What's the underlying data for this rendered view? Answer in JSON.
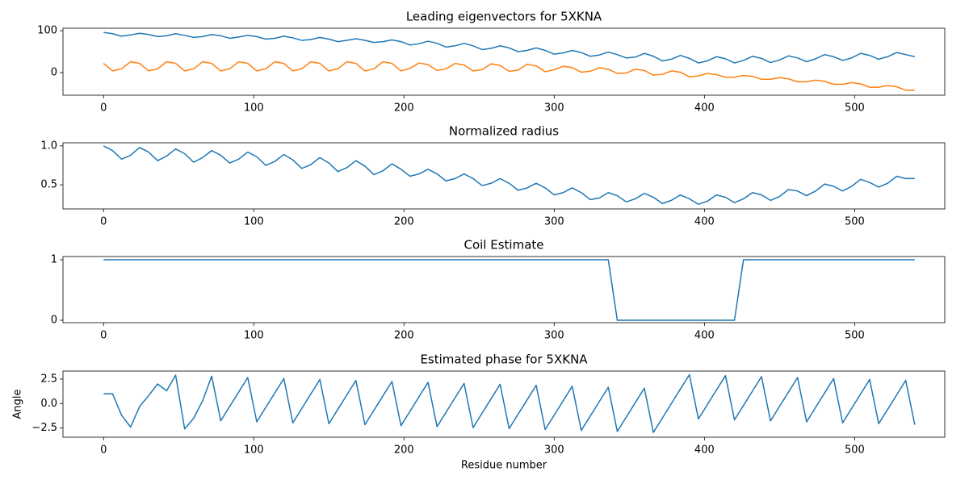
{
  "chart_data": [
    {
      "type": "line",
      "title": "Leading eigenvectors for 5XKNA",
      "x": [
        0,
        6,
        12,
        18,
        24,
        30,
        36,
        42,
        48,
        54,
        60,
        66,
        72,
        78,
        84,
        90,
        96,
        102,
        108,
        114,
        120,
        126,
        132,
        138,
        144,
        150,
        156,
        162,
        168,
        174,
        180,
        186,
        192,
        198,
        204,
        210,
        216,
        222,
        228,
        234,
        240,
        246,
        252,
        258,
        264,
        270,
        276,
        282,
        288,
        294,
        300,
        306,
        312,
        318,
        324,
        330,
        336,
        342,
        348,
        354,
        360,
        366,
        372,
        378,
        384,
        390,
        396,
        402,
        408,
        414,
        420,
        426,
        432,
        438,
        444,
        450,
        456,
        462,
        468,
        474,
        480,
        486,
        492,
        498,
        504,
        510,
        516,
        522,
        528,
        534,
        540
      ],
      "series": [
        {
          "color": "#1f77b4",
          "values": [
            96,
            93,
            87,
            90,
            94,
            91,
            86,
            88,
            93,
            89,
            84,
            86,
            91,
            88,
            82,
            85,
            89,
            86,
            80,
            82,
            87,
            83,
            77,
            79,
            84,
            80,
            74,
            77,
            81,
            77,
            72,
            74,
            78,
            74,
            66,
            69,
            75,
            70,
            61,
            64,
            70,
            64,
            55,
            58,
            64,
            59,
            50,
            53,
            59,
            53,
            44,
            47,
            53,
            48,
            39,
            42,
            49,
            43,
            35,
            37,
            46,
            39,
            28,
            32,
            41,
            34,
            23,
            28,
            38,
            33,
            23,
            29,
            39,
            34,
            24,
            30,
            40,
            35,
            26,
            33,
            43,
            38,
            29,
            35,
            46,
            41,
            32,
            38,
            48,
            43,
            38
          ]
        },
        {
          "color": "#ff7f0e",
          "values": [
            22,
            4,
            9,
            26,
            22,
            4,
            9,
            26,
            22,
            4,
            9,
            26,
            22,
            4,
            9,
            26,
            22,
            4,
            9,
            26,
            22,
            4,
            9,
            26,
            22,
            4,
            9,
            26,
            22,
            4,
            9,
            26,
            22,
            4,
            10,
            23,
            19,
            5,
            9,
            22,
            18,
            4,
            7,
            21,
            17,
            3,
            6,
            20,
            16,
            2,
            7,
            15,
            12,
            1,
            3,
            12,
            8,
            -2,
            -1,
            8,
            5,
            -6,
            -4,
            4,
            1,
            -10,
            -8,
            -2,
            -5,
            -11,
            -11,
            -7,
            -9,
            -16,
            -16,
            -12,
            -15,
            -22,
            -22,
            -18,
            -21,
            -28,
            -28,
            -24,
            -27,
            -35,
            -35,
            -31,
            -34,
            -42,
            -42
          ]
        }
      ],
      "xlim": [
        -27,
        560
      ],
      "xticks": [
        0,
        100,
        200,
        300,
        400,
        500
      ],
      "ylim": [
        -54,
        106
      ],
      "yticks": [
        0,
        100
      ]
    },
    {
      "type": "line",
      "title": "Normalized radius",
      "x": [
        0,
        6,
        12,
        18,
        24,
        30,
        36,
        42,
        48,
        54,
        60,
        66,
        72,
        78,
        84,
        90,
        96,
        102,
        108,
        114,
        120,
        126,
        132,
        138,
        144,
        150,
        156,
        162,
        168,
        174,
        180,
        186,
        192,
        198,
        204,
        210,
        216,
        222,
        228,
        234,
        240,
        246,
        252,
        258,
        264,
        270,
        276,
        282,
        288,
        294,
        300,
        306,
        312,
        318,
        324,
        330,
        336,
        342,
        348,
        354,
        360,
        366,
        372,
        378,
        384,
        390,
        396,
        402,
        408,
        414,
        420,
        426,
        432,
        438,
        444,
        450,
        456,
        462,
        468,
        474,
        480,
        486,
        492,
        498,
        504,
        510,
        516,
        522,
        528,
        534,
        540
      ],
      "series": [
        {
          "color": "#1f77b4",
          "values": [
            1.0,
            0.94,
            0.83,
            0.88,
            0.98,
            0.92,
            0.81,
            0.87,
            0.96,
            0.9,
            0.79,
            0.85,
            0.94,
            0.88,
            0.78,
            0.83,
            0.92,
            0.86,
            0.75,
            0.8,
            0.89,
            0.82,
            0.71,
            0.76,
            0.85,
            0.78,
            0.67,
            0.72,
            0.81,
            0.74,
            0.63,
            0.68,
            0.77,
            0.7,
            0.61,
            0.64,
            0.7,
            0.64,
            0.55,
            0.58,
            0.64,
            0.58,
            0.49,
            0.52,
            0.58,
            0.52,
            0.43,
            0.46,
            0.52,
            0.46,
            0.37,
            0.4,
            0.46,
            0.4,
            0.31,
            0.33,
            0.4,
            0.36,
            0.28,
            0.32,
            0.39,
            0.34,
            0.26,
            0.3,
            0.37,
            0.32,
            0.25,
            0.29,
            0.37,
            0.34,
            0.27,
            0.32,
            0.4,
            0.37,
            0.3,
            0.35,
            0.44,
            0.42,
            0.36,
            0.42,
            0.51,
            0.48,
            0.42,
            0.48,
            0.57,
            0.53,
            0.47,
            0.52,
            0.61,
            0.58,
            0.58
          ]
        }
      ],
      "xlim": [
        -27,
        560
      ],
      "xticks": [
        0,
        100,
        200,
        300,
        400,
        500
      ],
      "ylim": [
        0.19,
        1.04
      ],
      "yticks": [
        0.5,
        {
          "value": 1,
          "label": "1.0"
        }
      ]
    },
    {
      "type": "line",
      "title": "Coil Estimate",
      "x": [
        0,
        6,
        12,
        18,
        24,
        30,
        36,
        42,
        48,
        54,
        60,
        66,
        72,
        78,
        84,
        90,
        96,
        102,
        108,
        114,
        120,
        126,
        132,
        138,
        144,
        150,
        156,
        162,
        168,
        174,
        180,
        186,
        192,
        198,
        204,
        210,
        216,
        222,
        228,
        234,
        240,
        246,
        252,
        258,
        264,
        270,
        276,
        282,
        288,
        294,
        300,
        306,
        312,
        318,
        324,
        330,
        336,
        342,
        348,
        354,
        360,
        366,
        372,
        378,
        384,
        390,
        396,
        402,
        408,
        414,
        420,
        426,
        432,
        438,
        444,
        450,
        456,
        462,
        468,
        474,
        480,
        486,
        492,
        498,
        504,
        510,
        516,
        522,
        528,
        534,
        540
      ],
      "series": [
        {
          "color": "#1f77b4",
          "values": [
            1,
            1,
            1,
            1,
            1,
            1,
            1,
            1,
            1,
            1,
            1,
            1,
            1,
            1,
            1,
            1,
            1,
            1,
            1,
            1,
            1,
            1,
            1,
            1,
            1,
            1,
            1,
            1,
            1,
            1,
            1,
            1,
            1,
            1,
            1,
            1,
            1,
            1,
            1,
            1,
            1,
            1,
            1,
            1,
            1,
            1,
            1,
            1,
            1,
            1,
            1,
            1,
            1,
            1,
            1,
            1,
            1,
            0,
            0,
            0,
            0,
            0,
            0,
            0,
            0,
            0,
            0,
            0,
            0,
            0,
            0,
            1,
            1,
            1,
            1,
            1,
            1,
            1,
            1,
            1,
            1,
            1,
            1,
            1,
            1,
            1,
            1,
            1,
            1,
            1,
            1
          ]
        }
      ],
      "xlim": [
        -27,
        560
      ],
      "xticks": [
        0,
        100,
        200,
        300,
        400,
        500
      ],
      "ylim": [
        -0.04,
        1.053
      ],
      "yticks": [
        0,
        1
      ]
    },
    {
      "type": "line",
      "title": "Estimated phase for 5XKNA",
      "xlabel": "Residue number",
      "ylabel": "Angle",
      "x": [
        0,
        6,
        12,
        18,
        24,
        30,
        36,
        42,
        48,
        54,
        60,
        66,
        72,
        78,
        84,
        90,
        96,
        102,
        108,
        114,
        120,
        126,
        132,
        138,
        144,
        150,
        156,
        162,
        168,
        174,
        180,
        186,
        192,
        198,
        204,
        210,
        216,
        222,
        228,
        234,
        240,
        246,
        252,
        258,
        264,
        270,
        276,
        282,
        288,
        294,
        300,
        306,
        312,
        318,
        324,
        330,
        336,
        342,
        348,
        354,
        360,
        366,
        372,
        378,
        384,
        390,
        396,
        402,
        408,
        414,
        420,
        426,
        432,
        438,
        444,
        450,
        456,
        462,
        468,
        474,
        480,
        486,
        492,
        498,
        504,
        510,
        516,
        522,
        528,
        534,
        540
      ],
      "series": [
        {
          "color": "#1f77b4",
          "values": [
            1.0,
            1.0,
            -1.2,
            -2.4,
            -0.3,
            0.8,
            2.0,
            1.3,
            2.9,
            -2.6,
            -1.5,
            0.3,
            2.8,
            -1.77,
            -0.29,
            1.18,
            2.66,
            -1.87,
            -0.39,
            1.08,
            2.56,
            -1.97,
            -0.49,
            0.98,
            2.46,
            -2.06,
            -0.59,
            0.89,
            2.36,
            -2.16,
            -0.69,
            0.79,
            2.26,
            -2.26,
            -0.79,
            0.69,
            2.16,
            -2.36,
            -0.89,
            0.59,
            2.06,
            -2.46,
            -0.98,
            0.49,
            1.97,
            -2.56,
            -1.08,
            0.39,
            1.87,
            -2.66,
            -1.18,
            0.29,
            1.77,
            -2.75,
            -1.28,
            0.2,
            1.67,
            -2.85,
            -1.38,
            0.1,
            1.57,
            -2.95,
            -1.48,
            0.0,
            1.48,
            2.95,
            -1.57,
            -0.1,
            1.38,
            2.85,
            -1.67,
            -0.2,
            1.28,
            2.75,
            -1.77,
            -0.29,
            1.18,
            2.66,
            -1.87,
            -0.39,
            1.08,
            2.56,
            -1.97,
            -0.49,
            0.98,
            2.46,
            -2.06,
            -0.59,
            0.89,
            2.36,
            -2.16
          ]
        }
      ],
      "xlim": [
        -27,
        560
      ],
      "xticks": [
        0,
        100,
        200,
        300,
        400,
        500
      ],
      "ylim": [
        -3.44,
        3.32
      ],
      "yticks": [
        {
          "value": -2.5,
          "label": "−2.5"
        },
        {
          "value": 0,
          "label": "0.0"
        },
        2.5
      ]
    }
  ]
}
